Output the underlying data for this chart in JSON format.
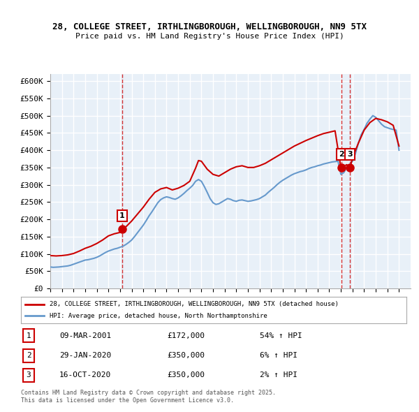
{
  "title_line1": "28, COLLEGE STREET, IRTHLINGBOROUGH, WELLINGBOROUGH, NN9 5TX",
  "title_line2": "Price paid vs. HM Land Registry's House Price Index (HPI)",
  "xlabel": "",
  "ylabel": "",
  "ylim": [
    0,
    620000
  ],
  "xlim_start": 1995.0,
  "xlim_end": 2026.0,
  "yticks": [
    0,
    50000,
    100000,
    150000,
    200000,
    250000,
    300000,
    350000,
    400000,
    450000,
    500000,
    550000,
    600000
  ],
  "ytick_labels": [
    "£0",
    "£50K",
    "£100K",
    "£150K",
    "£200K",
    "£250K",
    "£300K",
    "£350K",
    "£400K",
    "£450K",
    "£500K",
    "£550K",
    "£600K"
  ],
  "property_color": "#cc0000",
  "hpi_color": "#6699cc",
  "background_color": "#e8f0f8",
  "grid_color": "#ffffff",
  "transaction_marker_color": "#cc0000",
  "transactions": [
    {
      "label": "1",
      "year": 2001.18,
      "price": 172000,
      "date": "09-MAR-2001",
      "pct": "54%"
    },
    {
      "label": "2",
      "year": 2020.08,
      "price": 350000,
      "date": "29-JAN-2020",
      "pct": "6%"
    },
    {
      "label": "3",
      "year": 2020.79,
      "price": 350000,
      "date": "16-OCT-2020",
      "pct": "2%"
    }
  ],
  "legend_line1": "28, COLLEGE STREET, IRTHLINGBOROUGH, WELLINGBOROUGH, NN9 5TX (detached house)",
  "legend_line2": "HPI: Average price, detached house, North Northamptonshire",
  "footer_line1": "Contains HM Land Registry data © Crown copyright and database right 2025.",
  "footer_line2": "This data is licensed under the Open Government Licence v3.0.",
  "hpi_data": {
    "years": [
      1995.0,
      1995.25,
      1995.5,
      1995.75,
      1996.0,
      1996.25,
      1996.5,
      1996.75,
      1997.0,
      1997.25,
      1997.5,
      1997.75,
      1998.0,
      1998.25,
      1998.5,
      1998.75,
      1999.0,
      1999.25,
      1999.5,
      1999.75,
      2000.0,
      2000.25,
      2000.5,
      2000.75,
      2001.0,
      2001.25,
      2001.5,
      2001.75,
      2002.0,
      2002.25,
      2002.5,
      2002.75,
      2003.0,
      2003.25,
      2003.5,
      2003.75,
      2004.0,
      2004.25,
      2004.5,
      2004.75,
      2005.0,
      2005.25,
      2005.5,
      2005.75,
      2006.0,
      2006.25,
      2006.5,
      2006.75,
      2007.0,
      2007.25,
      2007.5,
      2007.75,
      2008.0,
      2008.25,
      2008.5,
      2008.75,
      2009.0,
      2009.25,
      2009.5,
      2009.75,
      2010.0,
      2010.25,
      2010.5,
      2010.75,
      2011.0,
      2011.25,
      2011.5,
      2011.75,
      2012.0,
      2012.25,
      2012.5,
      2012.75,
      2013.0,
      2013.25,
      2013.5,
      2013.75,
      2014.0,
      2014.25,
      2014.5,
      2014.75,
      2015.0,
      2015.25,
      2015.5,
      2015.75,
      2016.0,
      2016.25,
      2016.5,
      2016.75,
      2017.0,
      2017.25,
      2017.5,
      2017.75,
      2018.0,
      2018.25,
      2018.5,
      2018.75,
      2019.0,
      2019.25,
      2019.5,
      2019.75,
      2020.0,
      2020.25,
      2020.5,
      2020.75,
      2021.0,
      2021.25,
      2021.5,
      2021.75,
      2022.0,
      2022.25,
      2022.5,
      2022.75,
      2023.0,
      2023.25,
      2023.5,
      2023.75,
      2024.0,
      2024.25,
      2024.5,
      2024.75,
      2025.0
    ],
    "values": [
      62000,
      61000,
      61500,
      62000,
      63000,
      64000,
      65000,
      67000,
      70000,
      73000,
      76000,
      79000,
      82000,
      83000,
      85000,
      87000,
      90000,
      94000,
      99000,
      104000,
      108000,
      111000,
      114000,
      116000,
      119000,
      122000,
      127000,
      133000,
      140000,
      150000,
      161000,
      172000,
      183000,
      196000,
      210000,
      222000,
      235000,
      248000,
      257000,
      262000,
      265000,
      263000,
      260000,
      258000,
      262000,
      268000,
      275000,
      283000,
      290000,
      298000,
      310000,
      315000,
      310000,
      295000,
      278000,
      260000,
      248000,
      243000,
      245000,
      250000,
      255000,
      260000,
      258000,
      254000,
      252000,
      255000,
      256000,
      254000,
      252000,
      253000,
      255000,
      257000,
      260000,
      265000,
      270000,
      278000,
      285000,
      292000,
      300000,
      307000,
      313000,
      318000,
      323000,
      328000,
      332000,
      335000,
      338000,
      340000,
      343000,
      347000,
      350000,
      352000,
      355000,
      357000,
      360000,
      362000,
      364000,
      366000,
      367000,
      368000,
      330000,
      335000,
      350000,
      358000,
      368000,
      390000,
      420000,
      445000,
      460000,
      478000,
      490000,
      500000,
      495000,
      485000,
      475000,
      468000,
      465000,
      462000,
      460000,
      458000,
      400000
    ]
  },
  "property_data": {
    "years": [
      1995.0,
      1995.5,
      1996.0,
      1996.5,
      1997.0,
      1997.5,
      1998.0,
      1998.5,
      1999.0,
      1999.5,
      2000.0,
      2000.5,
      2001.0,
      2001.18,
      2001.5,
      2002.0,
      2002.5,
      2003.0,
      2003.5,
      2004.0,
      2004.5,
      2005.0,
      2005.5,
      2006.0,
      2006.5,
      2007.0,
      2007.5,
      2007.75,
      2008.0,
      2008.5,
      2009.0,
      2009.5,
      2010.0,
      2010.5,
      2011.0,
      2011.5,
      2012.0,
      2012.5,
      2013.0,
      2013.5,
      2014.0,
      2014.5,
      2015.0,
      2015.5,
      2016.0,
      2016.5,
      2017.0,
      2017.5,
      2018.0,
      2018.5,
      2019.0,
      2019.5,
      2020.0,
      2020.08,
      2020.5,
      2020.79,
      2021.0,
      2021.5,
      2022.0,
      2022.5,
      2023.0,
      2023.5,
      2024.0,
      2024.5,
      2025.0
    ],
    "values": [
      95000,
      94000,
      95000,
      97000,
      101000,
      108000,
      116000,
      122000,
      130000,
      140000,
      152000,
      158000,
      162000,
      172000,
      178000,
      195000,
      215000,
      235000,
      258000,
      278000,
      288000,
      292000,
      285000,
      290000,
      298000,
      310000,
      348000,
      370000,
      368000,
      345000,
      330000,
      325000,
      335000,
      345000,
      352000,
      355000,
      350000,
      350000,
      355000,
      362000,
      372000,
      382000,
      392000,
      402000,
      412000,
      420000,
      428000,
      435000,
      442000,
      448000,
      452000,
      456000,
      350000,
      350000,
      358000,
      350000,
      378000,
      420000,
      458000,
      480000,
      492000,
      488000,
      482000,
      472000,
      412000
    ]
  }
}
